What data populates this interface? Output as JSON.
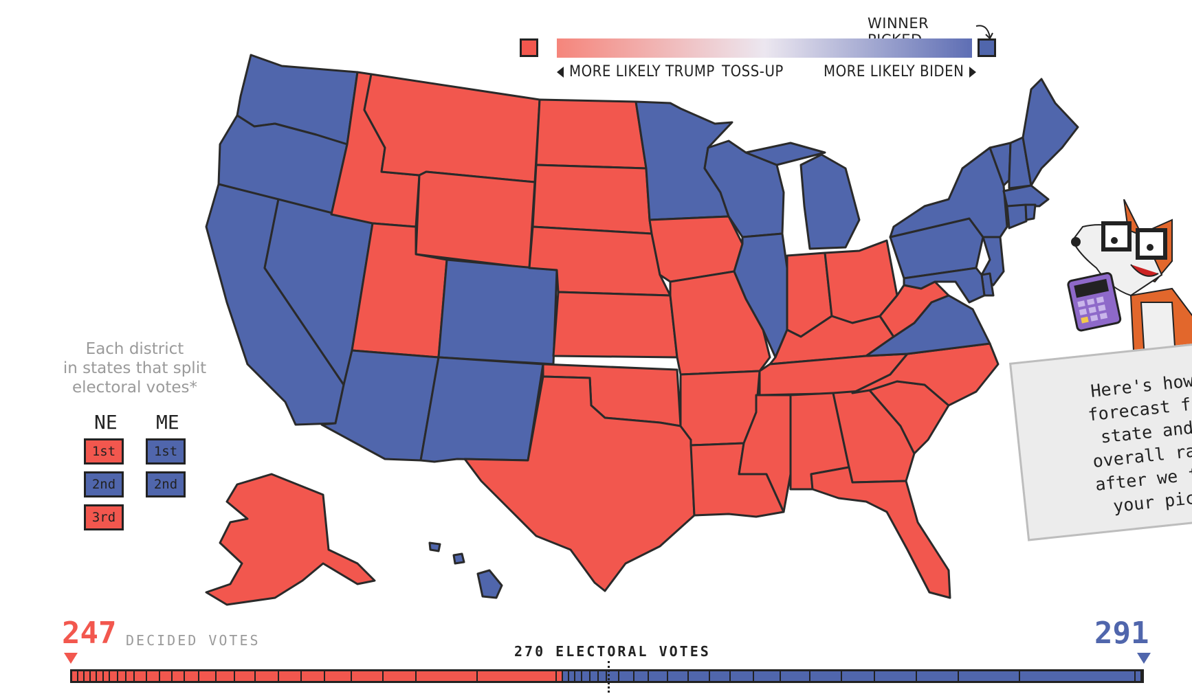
{
  "colors": {
    "trump": "#f2574e",
    "biden": "#5066ac",
    "tossup": "#e7e4ee",
    "outline": "#2a2a2a"
  },
  "legend": {
    "winner_picked": "WINNER PICKED",
    "more_likely_trump": "MORE LIKELY TRUMP",
    "toss_up": "TOSS-UP",
    "more_likely_biden": "MORE LIKELY BIDEN"
  },
  "split_states": {
    "caption_line1": "Each district",
    "caption_line2": "in states that split",
    "caption_line3": "electoral votes*",
    "ne_label": "NE",
    "me_label": "ME",
    "ne_districts": [
      {
        "label": "1st",
        "winner": "trump"
      },
      {
        "label": "2nd",
        "winner": "biden"
      },
      {
        "label": "3rd",
        "winner": "trump"
      }
    ],
    "me_districts": [
      {
        "label": "1st",
        "winner": "biden"
      },
      {
        "label": "2nd",
        "winner": "biden"
      }
    ]
  },
  "bubble": {
    "text": "Here's how \nforecast for\nstate and \noverall race\nafter we fac\nyour pick"
  },
  "electoral": {
    "trump_votes": "247",
    "decided_label": "DECIDED VOTES",
    "biden_votes": "291",
    "threshold_label": "270 ELECTORAL VOTES",
    "trump_total": 247,
    "biden_total": 291,
    "total": 538
  },
  "states": {
    "WA": "biden",
    "OR": "biden",
    "CA": "biden",
    "NV": "biden",
    "AZ": "biden",
    "NM": "biden",
    "CO": "biden",
    "ID": "trump",
    "MT": "trump",
    "WY": "trump",
    "UT": "trump",
    "ND": "trump",
    "SD": "trump",
    "NE": "trump",
    "KS": "trump",
    "OK": "trump",
    "TX": "trump",
    "MN": "biden",
    "IA": "trump",
    "MO": "trump",
    "AR": "trump",
    "LA": "trump",
    "WI": "biden",
    "IL": "biden",
    "MI": "biden",
    "IN": "trump",
    "OH": "trump",
    "KY": "trump",
    "TN": "trump",
    "MS": "trump",
    "AL": "trump",
    "GA": "trump",
    "FL": "trump",
    "SC": "trump",
    "NC": "trump",
    "VA": "biden",
    "WV": "trump",
    "PA": "biden",
    "NY": "biden",
    "VT": "biden",
    "NH": "biden",
    "ME": "biden",
    "MA": "biden",
    "CT": "biden",
    "RI": "biden",
    "NJ": "biden",
    "DE": "biden",
    "MD": "biden",
    "AK": "trump",
    "HI": "biden"
  },
  "icons": {
    "mascot": "fox-mascot-icon",
    "calculator": "calculator-icon"
  }
}
